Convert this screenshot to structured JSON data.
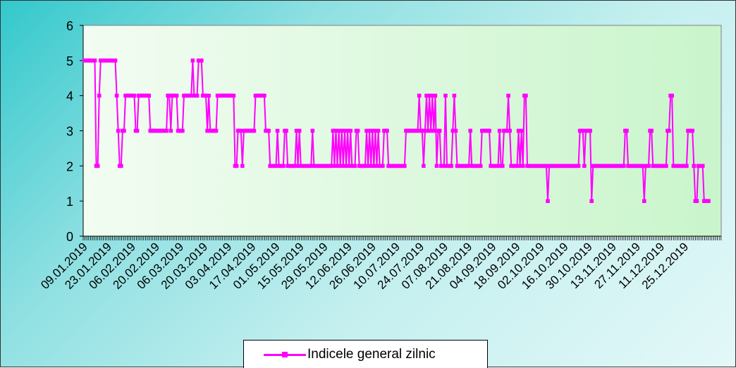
{
  "colors": {
    "series": "#ff00ff",
    "plot_bg_start": "#f2fcf2",
    "plot_bg_end": "#c9f5cb"
  },
  "chart_data": {
    "type": "line",
    "title": "",
    "xlabel": "",
    "ylabel": "",
    "ylim": [
      0,
      6
    ],
    "yticks": [
      "0",
      "1",
      "2",
      "3",
      "4",
      "5",
      "6"
    ],
    "grid": false,
    "legend_position": "bottom",
    "x_tick_labels": [
      "09.01.2019",
      "23.01.2019",
      "06.02.2019",
      "20.02.2019",
      "06.03.2019",
      "20.03.2019",
      "03.04.2019",
      "17.04.2019",
      "01.05.2019",
      "15.05.2019",
      "29.05.2019",
      "12.06.2019",
      "26.06.2019",
      "10.07.2019",
      "24.07.2019",
      "07.08.2019",
      "21.08.2019",
      "04.09.2019",
      "18.09.2019",
      "02.10.2019",
      "16.10.2019",
      "30.10.2019",
      "13.11.2019",
      "27.11.2019",
      "11.12.2019",
      "25.12.2019"
    ],
    "series": [
      {
        "name": "Indicele general zilnic",
        "values": [
          5,
          5,
          5,
          5,
          5,
          5,
          5,
          5,
          2,
          2,
          4,
          5,
          5,
          5,
          5,
          5,
          5,
          5,
          5,
          5,
          5,
          5,
          4,
          3,
          2,
          2,
          3,
          3,
          4,
          4,
          4,
          4,
          4,
          4,
          4,
          3,
          3,
          4,
          4,
          4,
          4,
          4,
          4,
          4,
          4,
          3,
          3,
          3,
          3,
          3,
          3,
          3,
          3,
          3,
          3,
          3,
          3,
          4,
          4,
          3,
          4,
          4,
          4,
          4,
          3,
          3,
          3,
          3,
          4,
          4,
          4,
          4,
          4,
          4,
          5,
          4,
          4,
          4,
          5,
          5,
          5,
          4,
          4,
          4,
          3,
          4,
          3,
          3,
          3,
          3,
          3,
          4,
          4,
          4,
          4,
          4,
          4,
          4,
          4,
          4,
          4,
          4,
          4,
          2,
          2,
          3,
          3,
          3,
          2,
          3,
          3,
          3,
          3,
          3,
          3,
          3,
          3,
          4,
          4,
          4,
          4,
          4,
          4,
          4,
          3,
          3,
          3,
          2,
          2,
          2,
          2,
          2,
          3,
          2,
          2,
          2,
          2,
          3,
          3,
          2,
          2,
          2,
          2,
          2,
          2,
          3,
          2,
          3,
          2,
          2,
          2,
          2,
          2,
          2,
          2,
          2,
          3,
          2,
          2,
          2,
          2,
          2,
          2,
          2,
          2,
          2,
          2,
          2,
          2,
          2,
          3,
          2,
          3,
          2,
          3,
          2,
          3,
          2,
          3,
          2,
          3,
          2,
          3,
          2,
          2,
          2,
          3,
          3,
          2,
          2,
          2,
          2,
          2,
          3,
          2,
          3,
          2,
          3,
          2,
          3,
          2,
          3,
          2,
          2,
          2,
          3,
          3,
          3,
          2,
          2,
          2,
          2,
          2,
          2,
          2,
          2,
          2,
          2,
          2,
          2,
          3,
          3,
          3,
          3,
          3,
          3,
          3,
          3,
          3,
          4,
          3,
          3,
          2,
          3,
          4,
          3,
          4,
          3,
          4,
          3,
          4,
          2,
          3,
          3,
          2,
          2,
          2,
          4,
          2,
          2,
          2,
          2,
          3,
          4,
          3,
          2,
          2,
          2,
          2,
          2,
          2,
          2,
          2,
          2,
          3,
          2,
          2,
          2,
          2,
          2,
          2,
          2,
          3,
          3,
          3,
          3,
          3,
          3,
          2,
          2,
          2,
          2,
          2,
          2,
          3,
          2,
          2,
          3,
          3,
          3,
          4,
          3,
          2,
          2,
          2,
          2,
          2,
          3,
          2,
          3,
          2,
          4,
          4,
          2,
          2,
          2,
          2,
          2,
          2,
          2,
          2,
          2,
          2,
          2,
          2,
          2,
          2,
          1,
          2,
          2,
          2,
          2,
          2,
          2,
          2,
          2,
          2,
          2,
          2,
          2,
          2,
          2,
          2,
          2,
          2,
          2,
          2,
          2,
          2,
          3,
          3,
          3,
          2,
          3,
          3,
          3,
          3,
          1,
          2,
          2,
          2,
          2,
          2,
          2,
          2,
          2,
          2,
          2,
          2,
          2,
          2,
          2,
          2,
          2,
          2,
          2,
          2,
          2,
          2,
          2,
          3,
          3,
          2,
          2,
          2,
          2,
          2,
          2,
          2,
          2,
          2,
          2,
          2,
          1,
          2,
          2,
          2,
          3,
          3,
          2,
          2,
          2,
          2,
          2,
          2,
          2,
          2,
          2,
          2,
          3,
          3,
          4,
          4,
          2,
          2,
          2,
          2,
          2,
          2,
          2,
          2,
          2,
          2,
          3,
          3,
          3,
          3,
          2,
          1,
          1,
          2,
          2,
          2,
          2,
          1,
          1,
          1,
          1
        ]
      }
    ]
  },
  "legend": {
    "label": "Indicele general zilnic"
  }
}
